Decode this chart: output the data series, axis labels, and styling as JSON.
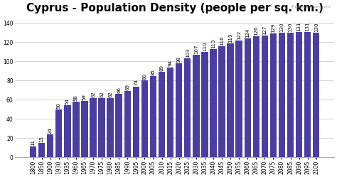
{
  "title": "Cyprus - Population Density (people per sq. km.)",
  "categories": [
    "1800",
    "1850",
    "1900",
    "1930",
    "1935",
    "1960",
    "1965",
    "1970",
    "1975",
    "1980",
    "1985",
    "1990",
    "1995",
    "2000",
    "2005",
    "2010",
    "2015",
    "2020",
    "2025",
    "2030",
    "2035",
    "2040",
    "2045",
    "2050",
    "2055",
    "2060",
    "2065",
    "2070",
    "2075",
    "2080",
    "2085",
    "2090",
    "2095",
    "2100"
  ],
  "values": [
    11,
    15,
    24,
    50,
    54,
    58,
    59,
    62,
    62,
    62,
    66,
    69,
    74,
    80,
    85,
    89,
    94,
    98,
    103,
    107,
    110,
    113,
    116,
    119,
    122,
    124,
    126,
    127,
    129,
    130,
    130,
    131,
    131,
    130
  ],
  "bar_color": "#4a3f9f",
  "ylabel_ticks": [
    0,
    20,
    40,
    60,
    80,
    100,
    120,
    140
  ],
  "ylim": [
    0,
    148
  ],
  "background_color": "#ffffff",
  "title_fontsize": 11,
  "bar_label_fontsize": 5.0,
  "tick_fontsize": 5.5,
  "watermark": "theglobalgraph.com"
}
